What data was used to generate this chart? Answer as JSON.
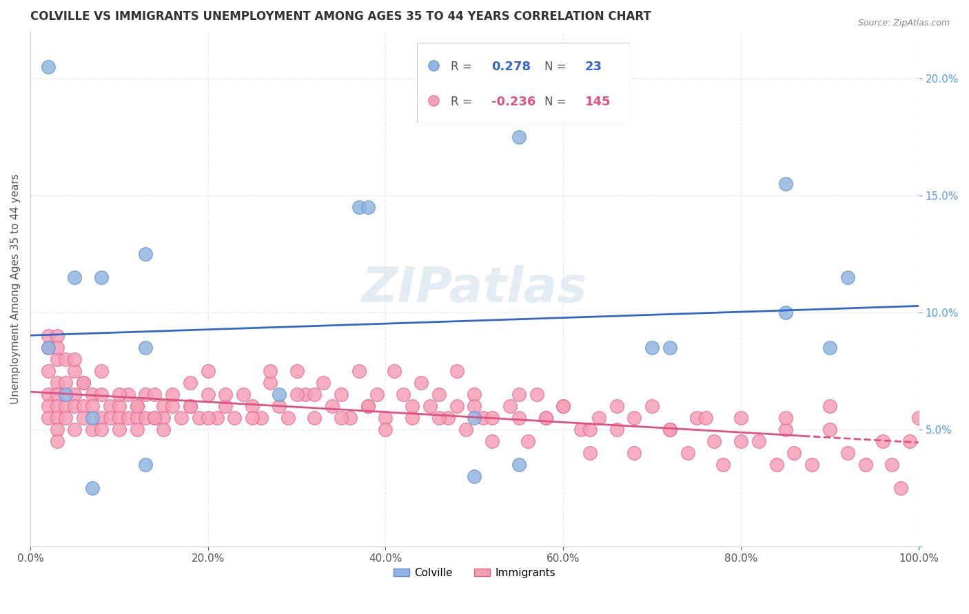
{
  "title": "COLVILLE VS IMMIGRANTS UNEMPLOYMENT AMONG AGES 35 TO 44 YEARS CORRELATION CHART",
  "source": "Source: ZipAtlas.com",
  "xlabel": "",
  "ylabel": "Unemployment Among Ages 35 to 44 years",
  "xlim": [
    0,
    1.0
  ],
  "ylim": [
    0,
    0.22
  ],
  "xticks": [
    0.0,
    0.2,
    0.4,
    0.6,
    0.8,
    1.0
  ],
  "yticks": [
    0.0,
    0.05,
    0.1,
    0.15,
    0.2
  ],
  "xtick_labels": [
    "0.0%",
    "20.0%",
    "40.0%",
    "60.0%",
    "80.0%",
    "100.0%"
  ],
  "ytick_labels": [
    "",
    "5.0%",
    "10.0%",
    "15.0%",
    "20.0%"
  ],
  "colville_color": "#92b4e0",
  "immigrants_color": "#f5a0b5",
  "colville_edge": "#5b8fd4",
  "immigrants_edge": "#e96090",
  "line_colville": "#3366cc",
  "line_immigrants": "#e05080",
  "legend_r_colville": "0.278",
  "legend_n_colville": "23",
  "legend_r_immigrants": "-0.236",
  "legend_n_immigrants": "145",
  "watermark": "ZIPatlas",
  "colville_x": [
    0.02,
    0.05,
    0.08,
    0.13,
    0.02,
    0.04,
    0.07,
    0.07,
    0.37,
    0.38,
    0.55,
    0.7,
    0.85,
    0.85,
    0.9,
    0.13,
    0.13,
    0.5,
    0.5,
    0.72,
    0.92,
    0.55,
    0.28
  ],
  "colville_y": [
    0.205,
    0.115,
    0.115,
    0.125,
    0.085,
    0.065,
    0.055,
    0.025,
    0.145,
    0.145,
    0.175,
    0.085,
    0.155,
    0.1,
    0.085,
    0.085,
    0.035,
    0.055,
    0.03,
    0.085,
    0.115,
    0.035,
    0.065
  ],
  "immigrants_x": [
    0.02,
    0.02,
    0.02,
    0.02,
    0.02,
    0.03,
    0.03,
    0.03,
    0.03,
    0.03,
    0.03,
    0.03,
    0.03,
    0.04,
    0.04,
    0.04,
    0.04,
    0.05,
    0.05,
    0.05,
    0.05,
    0.06,
    0.06,
    0.06,
    0.07,
    0.07,
    0.07,
    0.08,
    0.08,
    0.08,
    0.09,
    0.09,
    0.1,
    0.1,
    0.1,
    0.11,
    0.11,
    0.12,
    0.12,
    0.12,
    0.13,
    0.13,
    0.14,
    0.14,
    0.15,
    0.15,
    0.15,
    0.16,
    0.17,
    0.18,
    0.18,
    0.19,
    0.2,
    0.2,
    0.21,
    0.22,
    0.23,
    0.24,
    0.25,
    0.26,
    0.27,
    0.28,
    0.29,
    0.3,
    0.31,
    0.32,
    0.33,
    0.34,
    0.35,
    0.36,
    0.37,
    0.38,
    0.39,
    0.4,
    0.41,
    0.42,
    0.43,
    0.44,
    0.45,
    0.46,
    0.47,
    0.48,
    0.49,
    0.5,
    0.51,
    0.52,
    0.54,
    0.55,
    0.56,
    0.57,
    0.58,
    0.6,
    0.62,
    0.63,
    0.64,
    0.66,
    0.68,
    0.7,
    0.72,
    0.74,
    0.75,
    0.77,
    0.78,
    0.8,
    0.82,
    0.84,
    0.85,
    0.86,
    0.88,
    0.9,
    0.92,
    0.94,
    0.96,
    0.97,
    0.98,
    0.99,
    1.0,
    0.02,
    0.03,
    0.05,
    0.06,
    0.08,
    0.1,
    0.12,
    0.14,
    0.16,
    0.18,
    0.2,
    0.22,
    0.25,
    0.27,
    0.3,
    0.32,
    0.35,
    0.38,
    0.4,
    0.43,
    0.46,
    0.48,
    0.5,
    0.52,
    0.55,
    0.58,
    0.6,
    0.63,
    0.66,
    0.68,
    0.72,
    0.76,
    0.8,
    0.85,
    0.9
  ],
  "immigrants_y": [
    0.09,
    0.075,
    0.065,
    0.06,
    0.055,
    0.09,
    0.08,
    0.07,
    0.065,
    0.06,
    0.055,
    0.05,
    0.045,
    0.08,
    0.07,
    0.06,
    0.055,
    0.075,
    0.065,
    0.06,
    0.05,
    0.07,
    0.06,
    0.055,
    0.065,
    0.06,
    0.05,
    0.065,
    0.055,
    0.05,
    0.06,
    0.055,
    0.06,
    0.055,
    0.05,
    0.065,
    0.055,
    0.06,
    0.055,
    0.05,
    0.065,
    0.055,
    0.065,
    0.055,
    0.06,
    0.055,
    0.05,
    0.06,
    0.055,
    0.07,
    0.06,
    0.055,
    0.075,
    0.065,
    0.055,
    0.06,
    0.055,
    0.065,
    0.06,
    0.055,
    0.07,
    0.06,
    0.055,
    0.075,
    0.065,
    0.055,
    0.07,
    0.06,
    0.065,
    0.055,
    0.075,
    0.06,
    0.065,
    0.055,
    0.075,
    0.065,
    0.055,
    0.07,
    0.06,
    0.065,
    0.055,
    0.06,
    0.05,
    0.065,
    0.055,
    0.045,
    0.06,
    0.055,
    0.045,
    0.065,
    0.055,
    0.06,
    0.05,
    0.04,
    0.055,
    0.05,
    0.04,
    0.06,
    0.05,
    0.04,
    0.055,
    0.045,
    0.035,
    0.055,
    0.045,
    0.035,
    0.05,
    0.04,
    0.035,
    0.05,
    0.04,
    0.035,
    0.045,
    0.035,
    0.025,
    0.045,
    0.055,
    0.085,
    0.085,
    0.08,
    0.07,
    0.075,
    0.065,
    0.06,
    0.055,
    0.065,
    0.06,
    0.055,
    0.065,
    0.055,
    0.075,
    0.065,
    0.065,
    0.055,
    0.06,
    0.05,
    0.06,
    0.055,
    0.075,
    0.06,
    0.055,
    0.065,
    0.055,
    0.06,
    0.05,
    0.06,
    0.055,
    0.05,
    0.055,
    0.045,
    0.055,
    0.06
  ]
}
